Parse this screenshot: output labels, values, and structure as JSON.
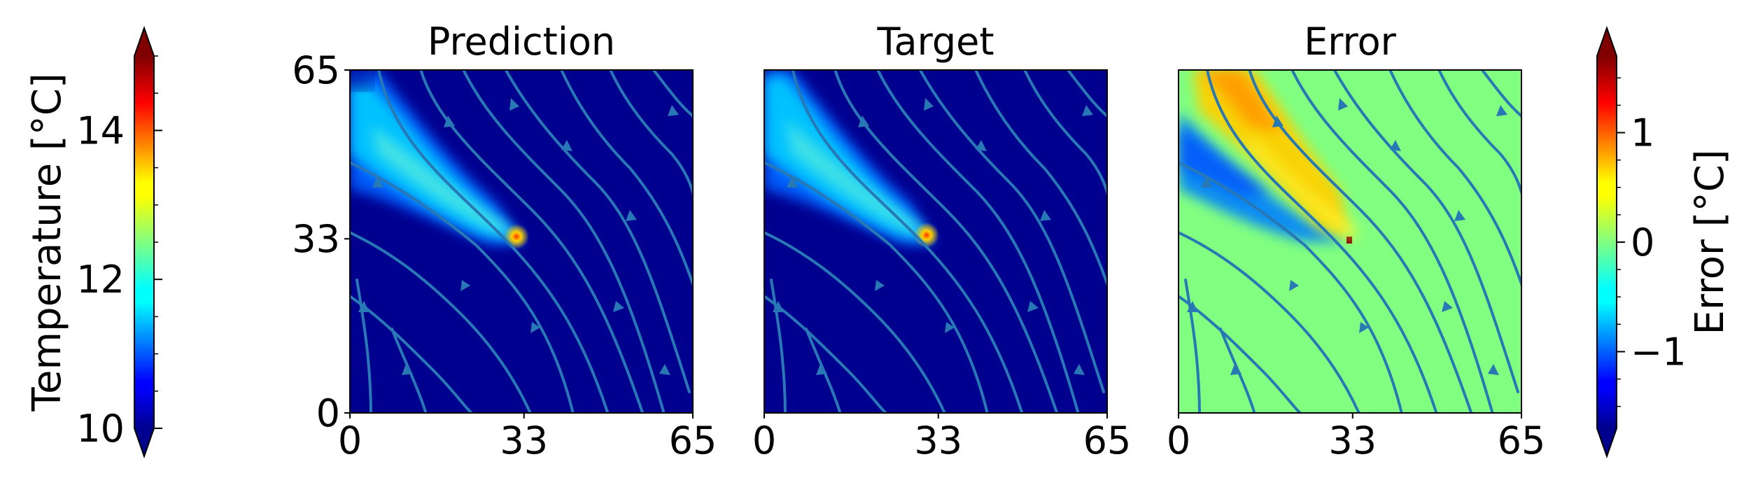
{
  "chart_data": [
    {
      "type": "heatmap",
      "title": "Prediction",
      "field": "temperature",
      "x_ticks": [
        "0",
        "33",
        "65"
      ],
      "y_ticks": [
        "0",
        "33",
        "65"
      ],
      "xlim": [
        0,
        65
      ],
      "ylim": [
        0,
        65
      ],
      "plume": {
        "source": [
          33,
          33
        ],
        "peak_value": 14.8,
        "base_value": 10.0
      },
      "colormap": "jet",
      "overlay": "streamlines"
    },
    {
      "type": "heatmap",
      "title": "Target",
      "field": "temperature",
      "x_ticks": [
        "0",
        "33",
        "65"
      ],
      "y_ticks": [],
      "xlim": [
        0,
        65
      ],
      "ylim": [
        0,
        65
      ],
      "plume": {
        "source": [
          32,
          33
        ],
        "peak_value": 14.8,
        "base_value": 10.0
      },
      "colormap": "jet",
      "overlay": "streamlines"
    },
    {
      "type": "heatmap",
      "title": "Error",
      "field": "error",
      "x_ticks": [
        "0",
        "33",
        "65"
      ],
      "y_ticks": [],
      "xlim": [
        0,
        65
      ],
      "ylim": [
        0,
        65
      ],
      "error_range": [
        -1.6,
        1.6
      ],
      "colormap": "jet",
      "overlay": "streamlines"
    }
  ],
  "colorbars": {
    "temperature": {
      "label": "Temperature [°C]",
      "range": [
        10,
        15
      ],
      "ticks": [
        "10",
        "12",
        "14"
      ],
      "tick_values": [
        10,
        12,
        14
      ],
      "extend": "both"
    },
    "error": {
      "label": "Error [°C]",
      "range": [
        -1.7,
        1.7
      ],
      "ticks": [
        "−1",
        "0",
        "1"
      ],
      "tick_values": [
        -1,
        0,
        1
      ],
      "extend": "both"
    }
  },
  "colors": {
    "streamline": "#2878b5",
    "background_low": "#00008f",
    "error_zero": "#80ff80"
  }
}
